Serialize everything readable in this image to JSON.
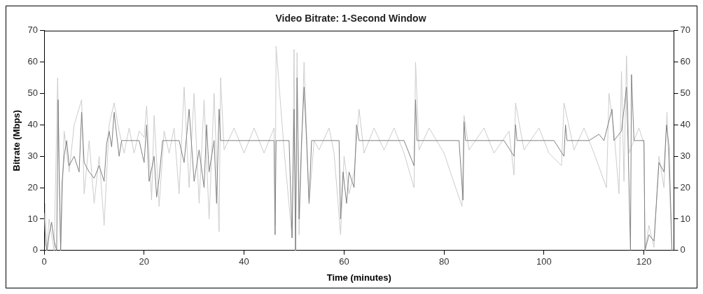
{
  "chart_data": {
    "type": "line",
    "title": "Video Bitrate: 1-Second Window",
    "xlabel": "Time (minutes)",
    "ylabel": "Bitrate (Mbps)",
    "xlim": [
      0,
      126
    ],
    "xticks": [
      0,
      20,
      40,
      60,
      80,
      100,
      120
    ],
    "ylim": [
      0,
      70
    ],
    "yticks": [
      0,
      10,
      20,
      30,
      40,
      50,
      60,
      70
    ],
    "y2lim": [
      0,
      70
    ],
    "y2ticks": [
      0,
      10,
      20,
      30,
      40,
      50,
      60,
      70
    ],
    "grid": false,
    "legend": false,
    "marker": "none",
    "line_style": "solid",
    "series": [
      {
        "color": "#808080",
        "x": [
          0,
          0.3,
          0.6,
          1,
          1.5,
          2,
          2.5,
          2.8,
          3.0,
          3.3,
          3.6,
          4,
          4.5,
          5,
          6,
          7,
          7.5,
          8,
          9,
          10,
          11,
          12,
          12.5,
          13,
          13.5,
          14,
          15,
          15.5,
          17,
          19,
          20,
          20.5,
          21,
          22,
          22.5,
          23,
          23.7,
          25,
          27,
          28,
          29,
          30,
          31,
          32,
          32.5,
          33,
          34,
          34.5,
          35,
          35.3,
          37,
          40,
          43,
          46,
          46.2,
          46.4,
          49,
          49.6,
          50,
          50.3,
          50.6,
          51,
          51.5,
          52,
          52.5,
          53,
          53.5,
          55,
          57,
          59,
          59.3,
          59.8,
          60.5,
          61,
          62,
          62.5,
          63,
          66,
          69,
          72,
          74,
          74.3,
          74.6,
          78,
          83,
          83.8,
          84,
          84.3,
          88,
          92,
          94,
          94.3,
          94.6,
          99,
          102,
          104,
          104.3,
          104.6,
          109,
          111,
          112,
          113.6,
          114,
          115.5,
          116.5,
          116.8,
          117.3,
          117.5,
          118,
          120,
          120.2,
          121,
          122,
          123,
          124,
          124.5,
          125,
          125.6
        ],
        "values": [
          12,
          2,
          0,
          5,
          9,
          3,
          0,
          48,
          25,
          0,
          22,
          30,
          35,
          27,
          30,
          25,
          44,
          28,
          25,
          23,
          27,
          22,
          34,
          38,
          33,
          44,
          30,
          35,
          35,
          35,
          28,
          40,
          22,
          30,
          17,
          23,
          35,
          35,
          35,
          28,
          45,
          22,
          32,
          20,
          40,
          25,
          35,
          15,
          45,
          35,
          35,
          35,
          35,
          35,
          5,
          35,
          35,
          4,
          45,
          0,
          55,
          10,
          35,
          52,
          35,
          15,
          35,
          35,
          35,
          35,
          10,
          25,
          15,
          25,
          20,
          40,
          35,
          35,
          35,
          35,
          27,
          48,
          35,
          35,
          35,
          16,
          41,
          35,
          35,
          35,
          30,
          40,
          35,
          35,
          35,
          30,
          40,
          35,
          35,
          37,
          35,
          45,
          35,
          38,
          52,
          35,
          0,
          56,
          35,
          35,
          0,
          5,
          3,
          28,
          25,
          40,
          33,
          0
        ]
      },
      {
        "color": "#cccccc",
        "x": [
          0.2,
          0.5,
          1,
          2,
          2.7,
          3.3,
          4,
          5,
          6,
          7.5,
          8,
          9,
          10,
          11,
          12,
          13,
          14,
          15,
          16,
          17,
          18,
          19,
          20,
          20.5,
          21.5,
          22,
          23,
          24,
          25,
          26,
          27,
          28,
          29,
          30,
          31,
          32,
          33,
          34,
          35,
          35.3,
          36,
          38,
          40,
          42,
          44,
          46,
          46.2,
          46.4,
          48,
          49.6,
          50,
          50.3,
          50.6,
          51,
          52,
          53,
          54,
          55,
          57,
          58,
          59.3,
          60,
          61,
          62,
          63,
          64,
          66,
          68,
          70,
          72,
          74,
          74.3,
          75,
          77,
          80,
          83.6,
          84,
          85,
          88,
          90,
          93,
          94,
          94.3,
          96,
          99,
          101,
          103.5,
          104,
          106,
          108,
          110,
          112.5,
          113,
          114,
          115,
          115.5,
          116,
          116.5,
          117,
          119,
          120,
          120.2,
          121,
          122,
          123,
          124,
          124.6,
          125,
          125.6
        ],
        "values": [
          15,
          0,
          10,
          0,
          55,
          0,
          38,
          25,
          40,
          48,
          18,
          35,
          15,
          30,
          8,
          40,
          47,
          38,
          31,
          39,
          31,
          38,
          36,
          46,
          16,
          43,
          14,
          38,
          31,
          39,
          18,
          52,
          20,
          50,
          15,
          48,
          10,
          50,
          6,
          55,
          32,
          39,
          31,
          39,
          31,
          39,
          8,
          65,
          32,
          4,
          64,
          0,
          63,
          5,
          60,
          15,
          35,
          32,
          39,
          31,
          5,
          30,
          18,
          25,
          45,
          31,
          39,
          32,
          39,
          31,
          20,
          60,
          32,
          39,
          31,
          14,
          43,
          32,
          39,
          31,
          38,
          24,
          47,
          32,
          39,
          31,
          27,
          47,
          32,
          39,
          31,
          20,
          50,
          38,
          18,
          57,
          22,
          62,
          31,
          39,
          34,
          0,
          8,
          1,
          30,
          20,
          44,
          25,
          0
        ]
      }
    ]
  }
}
